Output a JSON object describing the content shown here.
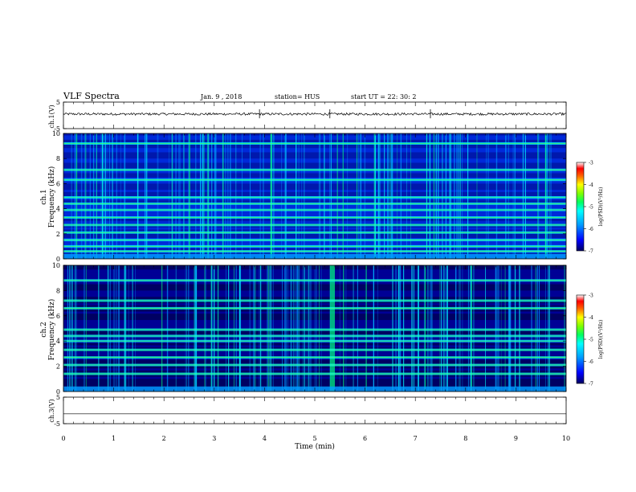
{
  "header": {
    "title": "VLF Spectra",
    "date": "Jan. 9 , 2018",
    "station": "station= HUS",
    "start": "start UT = 22: 30: 2"
  },
  "chart_data": [
    {
      "type": "line",
      "panel": "ch1-waveform",
      "ylabel": "ch.1(V)",
      "yticks": [
        "5",
        "-5"
      ],
      "ylim": [
        -5,
        5
      ],
      "x": [
        0,
        10
      ],
      "xlim": [
        0,
        10
      ],
      "note_baseline_v": 0.5
    },
    {
      "type": "heatmap",
      "panel": "ch1-spectrogram",
      "ylabel": "ch.1\nFrequency (kHz)",
      "ylabel_lines": [
        "ch.1",
        "Frequency (kHz)"
      ],
      "yticks": [
        "0",
        "2",
        "4",
        "6",
        "8",
        "10"
      ],
      "ylim": [
        0,
        10
      ],
      "xlim": [
        0,
        10
      ],
      "bright_bands_khz": [
        0.6,
        1.0,
        1.5,
        2.1,
        2.7,
        3.3,
        3.9,
        4.4,
        4.9,
        6.3,
        7.1,
        9.2
      ],
      "colorbar": {
        "label": "log(PSD)(V²/Hz)",
        "ticks": [
          "-3",
          "-4",
          "-5",
          "-6",
          "-7"
        ],
        "range": [
          -7,
          -3
        ]
      }
    },
    {
      "type": "heatmap",
      "panel": "ch2-spectrogram",
      "ylabel": "ch.2\nFrequency (kHz)",
      "ylabel_lines": [
        "ch.2",
        "Frequency (kHz)"
      ],
      "yticks": [
        "0",
        "2",
        "4",
        "6",
        "8",
        "10"
      ],
      "ylim": [
        0,
        10
      ],
      "xlim": [
        0,
        10
      ],
      "bright_bands_khz": [
        1.4,
        2.1,
        2.7,
        3.3,
        4.0,
        4.4,
        4.9,
        6.6,
        7.2,
        8.8
      ],
      "burst_minutes": [
        5.3,
        5.4
      ],
      "colorbar": {
        "label": "log(PSD)(V²/Hz)",
        "ticks": [
          "-3",
          "-4",
          "-5",
          "-6",
          "-7"
        ],
        "range": [
          -7,
          -3
        ]
      }
    },
    {
      "type": "line",
      "panel": "ch3-waveform",
      "ylabel": "ch.3(V)",
      "yticks": [
        "5",
        "-5"
      ],
      "ylim": [
        -5,
        5
      ],
      "x": [
        0,
        10
      ],
      "y": [
        -1.3,
        -1.3
      ],
      "xlim": [
        0,
        10
      ]
    }
  ],
  "xaxis": {
    "label": "Time (min)",
    "ticks": [
      "0",
      "1",
      "2",
      "3",
      "4",
      "5",
      "6",
      "7",
      "8",
      "9",
      "10"
    ],
    "range": [
      0,
      10
    ]
  },
  "colors": {
    "colormap": [
      "#000080",
      "#0000ff",
      "#00a0ff",
      "#00ffff",
      "#00ff80",
      "#80ff00",
      "#ffff00",
      "#ff8000",
      "#ff0000",
      "#ffffff"
    ],
    "background": "#ffffff",
    "axis": "#000000"
  }
}
